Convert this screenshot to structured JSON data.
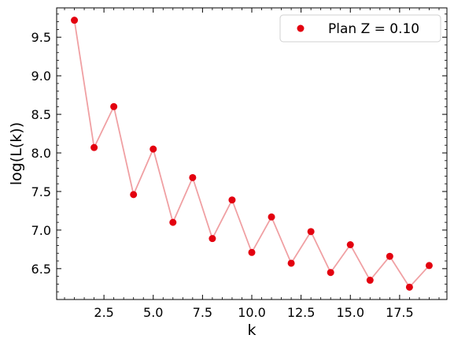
{
  "chart_data": {
    "type": "scatter",
    "title": "",
    "xlabel": "k",
    "ylabel": "log(L(k))",
    "xlim": [
      0.1,
      19.9
    ],
    "ylim": [
      6.1,
      9.88
    ],
    "xticks": [
      2.5,
      5.0,
      7.5,
      10.0,
      12.5,
      15.0,
      17.5
    ],
    "xtick_labels": [
      "2.5",
      "5.0",
      "7.5",
      "10.0",
      "12.5",
      "15.0",
      "17.5"
    ],
    "yticks": [
      6.5,
      7.0,
      7.5,
      8.0,
      8.5,
      9.0,
      9.5
    ],
    "ytick_labels": [
      "6.5",
      "7.0",
      "7.5",
      "8.0",
      "8.5",
      "9.0",
      "9.5"
    ],
    "grid": false,
    "legend_position": "top-right",
    "series": [
      {
        "name": "Plan Z = 0.10",
        "marker_color": "#e3000f",
        "line_color": "#f0a0a3",
        "x": [
          1,
          2,
          3,
          4,
          5,
          6,
          7,
          8,
          9,
          10,
          11,
          12,
          13,
          14,
          15,
          16,
          17,
          18,
          19
        ],
        "y": [
          9.72,
          8.07,
          8.6,
          7.46,
          8.05,
          7.1,
          7.68,
          6.89,
          7.39,
          6.71,
          7.17,
          6.57,
          6.98,
          6.45,
          6.81,
          6.35,
          6.66,
          6.26,
          6.54
        ]
      }
    ]
  }
}
